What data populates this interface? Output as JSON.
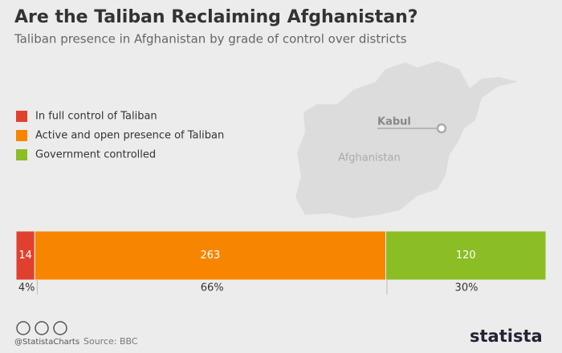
{
  "chart_data": {
    "type": "stacked-bar",
    "title": "Are the Taliban Reclaiming Afghanistan?",
    "subtitle": "Taliban presence in Afghanistan by grade of control over districts",
    "series": [
      {
        "name": "In full control of Taliban",
        "color": "#e0412f",
        "values": [
          14
        ],
        "share": 4,
        "share_label": "4%"
      },
      {
        "name": "Active and open presence of Taliban",
        "color": "#f78500",
        "values": [
          263
        ],
        "share": 66,
        "share_label": "66%"
      },
      {
        "name": "Government controlled",
        "color": "#8bbd24",
        "values": [
          120
        ],
        "share": 30,
        "share_label": "30%"
      }
    ],
    "annotations": [
      "Kabul",
      "Afghanistan"
    ],
    "credit": "@StatistaCharts",
    "source": "Source: BBC",
    "brand": "statista"
  }
}
